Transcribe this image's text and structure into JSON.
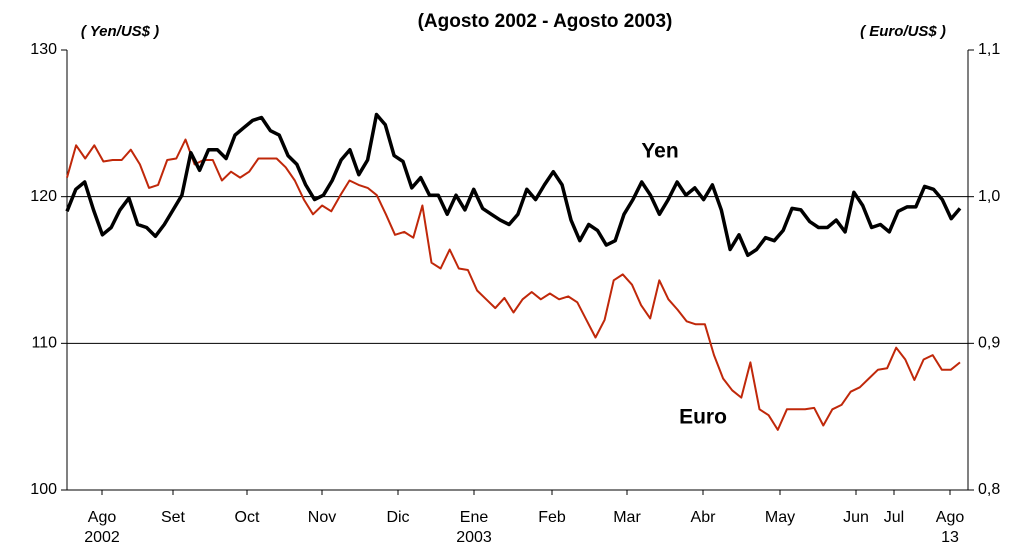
{
  "chart_data": {
    "type": "line",
    "title": "(Agosto 2002 - Agosto 2003)",
    "y_label": "( Yen/US$ )",
    "y2_label": "( Euro/US$ )",
    "x_labels": [
      {
        "month": "Ago",
        "year": "2002"
      },
      {
        "month": "Set"
      },
      {
        "month": "Oct"
      },
      {
        "month": "Nov"
      },
      {
        "month": "Dic"
      },
      {
        "month": "Ene",
        "year": "2003"
      },
      {
        "month": "Feb"
      },
      {
        "month": "Mar"
      },
      {
        "month": "Abr"
      },
      {
        "month": "May"
      },
      {
        "month": "Jun"
      },
      {
        "month": "Jul"
      },
      {
        "month": "Ago",
        "year": "13"
      }
    ],
    "ylim": [
      100,
      130
    ],
    "yticks": [
      100,
      110,
      120,
      130
    ],
    "y2lim": [
      0.8,
      1.1
    ],
    "y2ticks": [
      {
        "value": 0.8,
        "label": "0,8"
      },
      {
        "value": 0.9,
        "label": "0,9"
      },
      {
        "value": 1.0,
        "label": "1,0"
      },
      {
        "value": 1.1,
        "label": "1,1"
      }
    ],
    "grid_lines": [
      110,
      120
    ],
    "annotations": [
      {
        "text": "Yen"
      },
      {
        "text": "Euro"
      }
    ],
    "series": [
      {
        "name": "Yen",
        "color": "#000000",
        "values": [
          119.0,
          120.5,
          121.0,
          119.1,
          117.4,
          117.9,
          119.1,
          119.9,
          118.1,
          117.9,
          117.3,
          118.1,
          119.1,
          120.1,
          123.0,
          121.8,
          123.2,
          123.2,
          122.6,
          124.2,
          124.7,
          125.2,
          125.4,
          124.5,
          124.2,
          122.8,
          122.2,
          120.8,
          119.8,
          120.1,
          121.1,
          122.5,
          123.2,
          121.5,
          122.5,
          125.6,
          124.9,
          122.8,
          122.4,
          120.6,
          121.3,
          120.1,
          120.1,
          118.8,
          120.1,
          119.1,
          120.5,
          119.2,
          118.8,
          118.4,
          118.1,
          118.8,
          120.5,
          119.8,
          120.8,
          121.7,
          120.8,
          118.4,
          117.0,
          118.1,
          117.7,
          116.7,
          117.0,
          118.8,
          119.8,
          121.0,
          120.1,
          118.8,
          119.8,
          121.0,
          120.1,
          120.6,
          119.8,
          120.8,
          119.1,
          116.4,
          117.4,
          116.0,
          116.4,
          117.2,
          117.0,
          117.7,
          119.2,
          119.1,
          118.3,
          117.9,
          117.9,
          118.4,
          117.6,
          120.3,
          119.4,
          117.9,
          118.1,
          117.6,
          119.0,
          119.3,
          119.3,
          120.7,
          120.5,
          119.8,
          118.5,
          119.2
        ]
      },
      {
        "name": "Euro",
        "color": "#c0280a",
        "axis": "y2",
        "values": [
          1.013,
          1.035,
          1.026,
          1.035,
          1.024,
          1.025,
          1.025,
          1.032,
          1.022,
          1.006,
          1.008,
          1.025,
          1.026,
          1.039,
          1.022,
          1.025,
          1.025,
          1.011,
          1.017,
          1.013,
          1.017,
          1.026,
          1.026,
          1.026,
          1.02,
          1.011,
          0.998,
          0.988,
          0.994,
          0.99,
          1.001,
          1.011,
          1.008,
          1.006,
          1.001,
          0.988,
          0.974,
          0.976,
          0.972,
          0.994,
          0.955,
          0.951,
          0.964,
          0.951,
          0.95,
          0.936,
          0.93,
          0.924,
          0.931,
          0.921,
          0.93,
          0.935,
          0.93,
          0.934,
          0.93,
          0.932,
          0.928,
          0.916,
          0.904,
          0.916,
          0.943,
          0.947,
          0.94,
          0.926,
          0.917,
          0.943,
          0.93,
          0.923,
          0.915,
          0.913,
          0.913,
          0.892,
          0.876,
          0.868,
          0.863,
          0.887,
          0.855,
          0.851,
          0.841,
          0.855,
          0.855,
          0.855,
          0.856,
          0.844,
          0.855,
          0.858,
          0.867,
          0.87,
          0.876,
          0.882,
          0.883,
          0.897,
          0.889,
          0.875,
          0.889,
          0.892,
          0.882,
          0.882,
          0.887
        ]
      }
    ]
  }
}
